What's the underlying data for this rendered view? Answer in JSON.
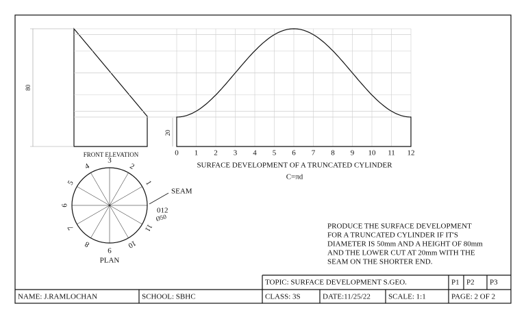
{
  "front_elevation": {
    "label": "FRONT ELEVATION",
    "height_dim": "80"
  },
  "development": {
    "title": "SURFACE DEVELOPMENT OF A TRUNCATED CYLINDER",
    "formula": "C=πd",
    "height_dim": "20",
    "generators": [
      "0",
      "1",
      "2",
      "3",
      "4",
      "5",
      "6",
      "7",
      "8",
      "9",
      "10",
      "11",
      "12"
    ]
  },
  "plan": {
    "label": "PLAN",
    "seam": "SEAM",
    "diameter": "Ø50",
    "points": [
      "012",
      "1",
      "2",
      "3",
      "4",
      "5",
      "6",
      "7",
      "8",
      "9",
      "10",
      "11"
    ]
  },
  "instructions": [
    "PRODUCE THE SURFACE DEVELOPMENT",
    "FOR A TRUNCATED CYLINDER IF IT'S",
    "DIAMETER IS 50mm AND A HEIGHT OF 80mm",
    "AND THE LOWER CUT AT 20mm WITH THE",
    "SEAM ON THE SHORTER END."
  ],
  "title_block": {
    "topic": "TOPIC: SURFACE DEVELOPMENT S.GEO.",
    "p1": "P1",
    "p2": "P2",
    "p3": "P3",
    "name": "NAME: J.RAMLOCHAN",
    "school": "SCHOOL: SBHC",
    "class": "CLASS: 3S",
    "date": "DATE:11/25/22",
    "scale": "SCALE: 1:1",
    "page": "PAGE: 2 OF 2"
  }
}
